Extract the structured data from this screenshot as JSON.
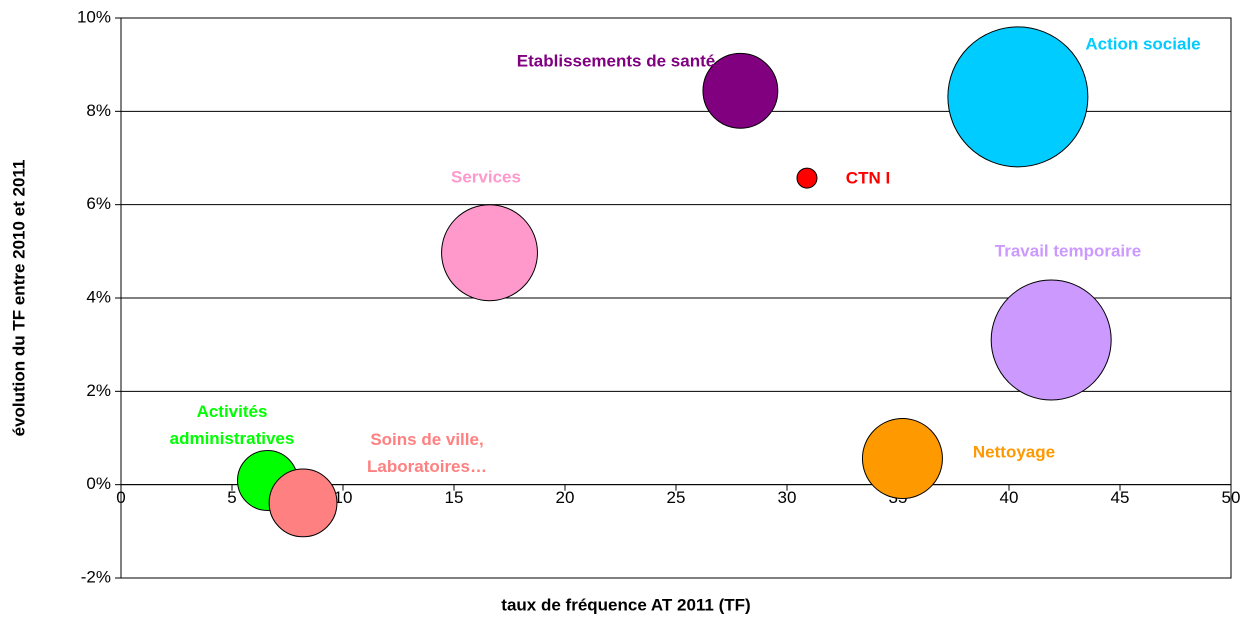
{
  "chart_data": {
    "type": "bubble",
    "xlabel": "taux de fréquence AT 2011 (TF)",
    "ylabel": "évolution du TF entre 2010 et 2011",
    "xlim": [
      0,
      50
    ],
    "xticks": [
      0,
      5,
      10,
      15,
      20,
      25,
      30,
      35,
      40,
      45,
      50
    ],
    "ylim": [
      -2,
      10
    ],
    "yticks": [
      {
        "value": -2,
        "label": "-2%"
      },
      {
        "value": 0,
        "label": "0%"
      },
      {
        "value": 2,
        "label": "2%"
      },
      {
        "value": 4,
        "label": "4%"
      },
      {
        "value": 6,
        "label": "6%"
      },
      {
        "value": 8,
        "label": "8%"
      },
      {
        "value": 10,
        "label": "10%"
      }
    ],
    "grid": true,
    "series": [
      {
        "name": "Etablissements de santé",
        "color": "#800080",
        "x": [
          27.9
        ],
        "values": [
          8.44
        ],
        "sizes": [
          14
        ]
      },
      {
        "name": "Action sociale",
        "color": "#00ccff",
        "x": [
          40.4
        ],
        "values": [
          8.31
        ],
        "sizes": [
          49
        ]
      },
      {
        "name": "CTN I",
        "color": "#ff0000",
        "x": [
          30.9
        ],
        "values": [
          6.57
        ],
        "sizes": [
          1
        ]
      },
      {
        "name": "Services",
        "color": "#ff99cc",
        "x": [
          16.6
        ],
        "values": [
          4.97
        ],
        "sizes": [
          23
        ]
      },
      {
        "name": "Travail temporaire",
        "color": "#cc99ff",
        "x": [
          41.9
        ],
        "values": [
          3.1
        ],
        "sizes": [
          36
        ]
      },
      {
        "name": "Nettoyage",
        "color": "#ff9900",
        "x": [
          35.2
        ],
        "values": [
          0.56
        ],
        "sizes": [
          16
        ]
      },
      {
        "name": "Activités administratives",
        "color": "#00ff00",
        "x": [
          6.6
        ],
        "values": [
          0.09
        ],
        "sizes": [
          9
        ]
      },
      {
        "name": "Soins de ville, Laboratoires…",
        "color": "#ff8080",
        "x": [
          8.2
        ],
        "values": [
          -0.39
        ],
        "sizes": [
          11.5
        ]
      }
    ]
  }
}
